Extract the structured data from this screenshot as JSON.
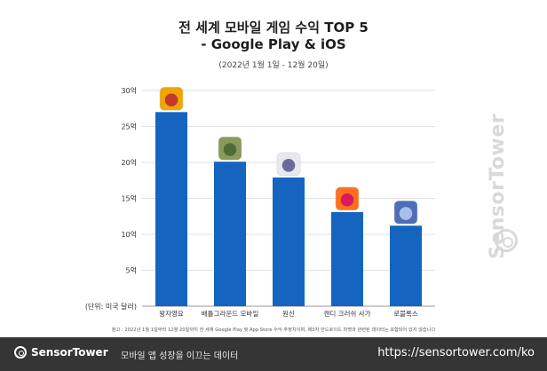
{
  "chart_data": {
    "type": "bar",
    "title": "전 세계 모바일 게임 수익 TOP 5",
    "subtitle_line": "- Google Play & iOS",
    "period": "(2022년 1월 1일 - 12월 20일)",
    "unit_label": "(단위: 미국 달러)",
    "categories": [
      "왕자영요",
      "배틀그라운드 모바일",
      "원신",
      "캔디 크러쉬 사가",
      "로블록스"
    ],
    "values": [
      27,
      20.1,
      17.9,
      13.1,
      11.2
    ],
    "ylim": [
      0,
      30
    ],
    "y_ticks": [
      {
        "value": 5,
        "label": "5억"
      },
      {
        "value": 10,
        "label": "10억"
      },
      {
        "value": 15,
        "label": "15억"
      },
      {
        "value": 20,
        "label": "20억"
      },
      {
        "value": 25,
        "label": "25억"
      },
      {
        "value": 30,
        "label": "30억"
      }
    ],
    "bar_color": "#1565c0",
    "grid": true,
    "icons": [
      "honor-of-kings-icon",
      "pubg-mobile-icon",
      "genshin-impact-icon",
      "candy-crush-icon",
      "roblox-icon"
    ]
  },
  "note": "참고 : 2022년 1월 1일부터 12월 20일까지 전 세계 Google Play 및 App Store 수익 추정치이며, 제3자 안드로이드 마켓과 관련된 데이터는 포함되어 있지 않습니다",
  "watermark": "SensorTower",
  "footer": {
    "brand": "SensorTower",
    "tagline": "모바일 앱 성장을 이끄는 데이터",
    "url": "https://sensortower.com/ko"
  }
}
